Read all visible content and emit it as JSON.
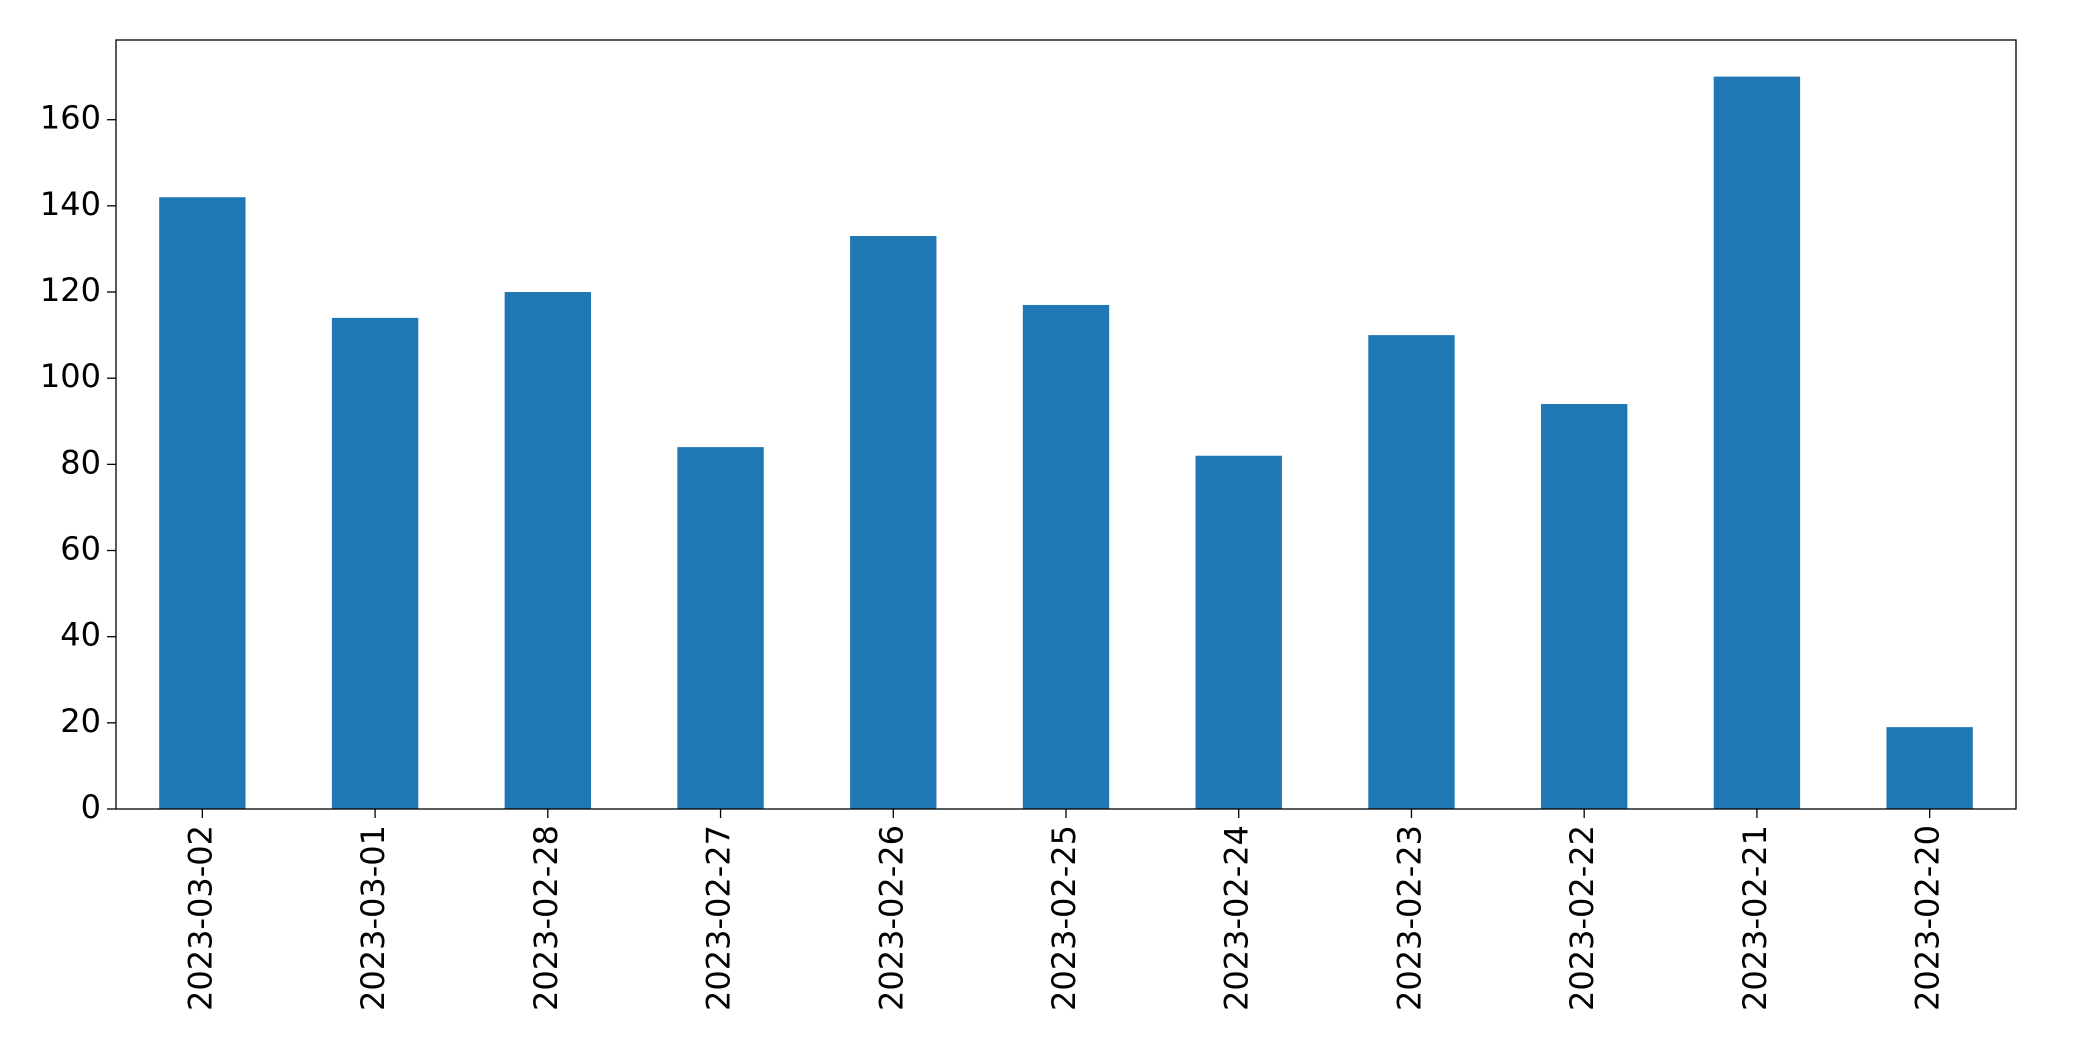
{
  "chart_data": {
    "type": "bar",
    "categories": [
      "2023-03-02",
      "2023-03-01",
      "2023-02-28",
      "2023-02-27",
      "2023-02-26",
      "2023-02-25",
      "2023-02-24",
      "2023-02-23",
      "2023-02-22",
      "2023-02-21",
      "2023-02-20"
    ],
    "values": [
      142,
      114,
      120,
      84,
      133,
      117,
      82,
      110,
      94,
      170,
      19
    ],
    "color": "#1f77b4",
    "ylim": [
      0,
      178.5
    ],
    "yticks": [
      0,
      20,
      40,
      60,
      80,
      100,
      120,
      140,
      160
    ],
    "grid": false
  }
}
